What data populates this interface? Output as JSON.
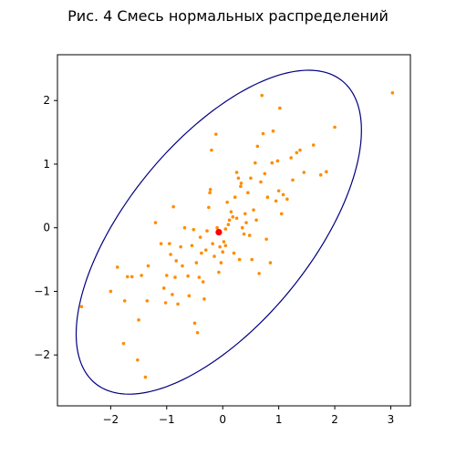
{
  "chart_data": {
    "type": "scatter",
    "title": "Рис. 4 Смесь нормальных распределений",
    "xlabel": "",
    "ylabel": "",
    "xlim": [
      -2.95,
      3.35
    ],
    "ylim": [
      -2.8,
      2.72
    ],
    "xticks": [
      -2,
      -1,
      0,
      1,
      2,
      3
    ],
    "yticks": [
      -2,
      -1,
      0,
      1,
      2
    ],
    "xtick_labels": [
      "−2",
      "−1",
      "0",
      "1",
      "2",
      "3"
    ],
    "ytick_labels": [
      "−2",
      "−1",
      "0",
      "1",
      "2"
    ],
    "grid": false,
    "colors": {
      "points": "#ff8c00",
      "center": "#ff0000",
      "ellipse": "#000080",
      "axes": "#000000"
    },
    "center": {
      "x": -0.07,
      "y": -0.07
    },
    "ellipse": {
      "cx": -0.07,
      "cy": -0.07,
      "semi_major": 3.25,
      "semi_minor": 1.55,
      "angle_deg": 45
    },
    "points": [
      [
        -2.52,
        -1.24
      ],
      [
        -1.88,
        -0.62
      ],
      [
        -2.0,
        -1.0
      ],
      [
        -1.77,
        -1.82
      ],
      [
        -1.7,
        -0.77
      ],
      [
        -1.75,
        -1.15
      ],
      [
        -1.62,
        -0.77
      ],
      [
        -1.5,
        -1.45
      ],
      [
        -1.52,
        -2.08
      ],
      [
        -1.45,
        -0.75
      ],
      [
        -1.38,
        -2.35
      ],
      [
        -1.35,
        -1.15
      ],
      [
        -1.33,
        -0.6
      ],
      [
        -1.2,
        0.08
      ],
      [
        -1.1,
        -0.25
      ],
      [
        -1.05,
        -0.95
      ],
      [
        -1.0,
        -0.75
      ],
      [
        -1.02,
        -1.18
      ],
      [
        -0.95,
        -0.25
      ],
      [
        -0.93,
        -0.42
      ],
      [
        -0.9,
        -1.05
      ],
      [
        -0.88,
        0.33
      ],
      [
        -0.85,
        -0.78
      ],
      [
        -0.83,
        -0.52
      ],
      [
        -0.8,
        -1.2
      ],
      [
        -0.75,
        -0.3
      ],
      [
        -0.72,
        -0.6
      ],
      [
        -0.68,
        0.0
      ],
      [
        -0.62,
        -0.76
      ],
      [
        -0.6,
        -1.07
      ],
      [
        -0.55,
        -0.28
      ],
      [
        -0.52,
        -0.03
      ],
      [
        -0.5,
        -1.5
      ],
      [
        -0.47,
        -0.55
      ],
      [
        -0.45,
        -1.65
      ],
      [
        -0.42,
        -0.78
      ],
      [
        -0.4,
        -0.15
      ],
      [
        -0.38,
        -0.4
      ],
      [
        -0.35,
        -0.85
      ],
      [
        -0.33,
        -1.12
      ],
      [
        -0.3,
        -0.35
      ],
      [
        -0.28,
        -0.05
      ],
      [
        -0.25,
        0.32
      ],
      [
        -0.23,
        0.55
      ],
      [
        -0.22,
        0.6
      ],
      [
        -0.2,
        1.22
      ],
      [
        -0.18,
        -0.25
      ],
      [
        -0.15,
        -0.45
      ],
      [
        -0.12,
        1.47
      ],
      [
        -0.1,
        0.0
      ],
      [
        -0.07,
        -0.7
      ],
      [
        -0.05,
        -0.3
      ],
      [
        -0.03,
        -0.55
      ],
      [
        0.0,
        -0.38
      ],
      [
        0.02,
        -0.22
      ],
      [
        0.05,
        -0.28
      ],
      [
        0.05,
        -0.02
      ],
      [
        0.08,
        0.4
      ],
      [
        0.1,
        0.05
      ],
      [
        0.12,
        0.12
      ],
      [
        0.15,
        0.25
      ],
      [
        0.18,
        0.17
      ],
      [
        0.2,
        -0.4
      ],
      [
        0.22,
        0.48
      ],
      [
        0.25,
        0.15
      ],
      [
        0.25,
        0.87
      ],
      [
        0.28,
        0.78
      ],
      [
        0.3,
        -0.5
      ],
      [
        0.32,
        0.65
      ],
      [
        0.33,
        0.7
      ],
      [
        0.35,
        0.0
      ],
      [
        0.38,
        -0.1
      ],
      [
        0.4,
        0.22
      ],
      [
        0.42,
        0.08
      ],
      [
        0.45,
        0.55
      ],
      [
        0.48,
        -0.12
      ],
      [
        0.5,
        0.78
      ],
      [
        0.52,
        -0.5
      ],
      [
        0.55,
        0.28
      ],
      [
        0.58,
        1.02
      ],
      [
        0.6,
        0.12
      ],
      [
        0.62,
        1.28
      ],
      [
        0.65,
        -0.72
      ],
      [
        0.68,
        0.72
      ],
      [
        0.7,
        2.08
      ],
      [
        0.72,
        1.48
      ],
      [
        0.75,
        0.85
      ],
      [
        0.78,
        -0.18
      ],
      [
        0.8,
        0.48
      ],
      [
        0.85,
        -0.55
      ],
      [
        0.88,
        1.02
      ],
      [
        0.9,
        1.52
      ],
      [
        0.95,
        0.42
      ],
      [
        0.98,
        1.05
      ],
      [
        1.0,
        0.58
      ],
      [
        1.02,
        1.88
      ],
      [
        1.05,
        0.22
      ],
      [
        1.08,
        0.52
      ],
      [
        1.15,
        0.45
      ],
      [
        1.22,
        1.1
      ],
      [
        1.25,
        0.75
      ],
      [
        1.32,
        1.18
      ],
      [
        1.38,
        1.22
      ],
      [
        1.45,
        0.87
      ],
      [
        1.62,
        1.3
      ],
      [
        1.75,
        0.83
      ],
      [
        1.85,
        0.88
      ],
      [
        2.0,
        1.58
      ],
      [
        3.03,
        2.12
      ]
    ]
  }
}
